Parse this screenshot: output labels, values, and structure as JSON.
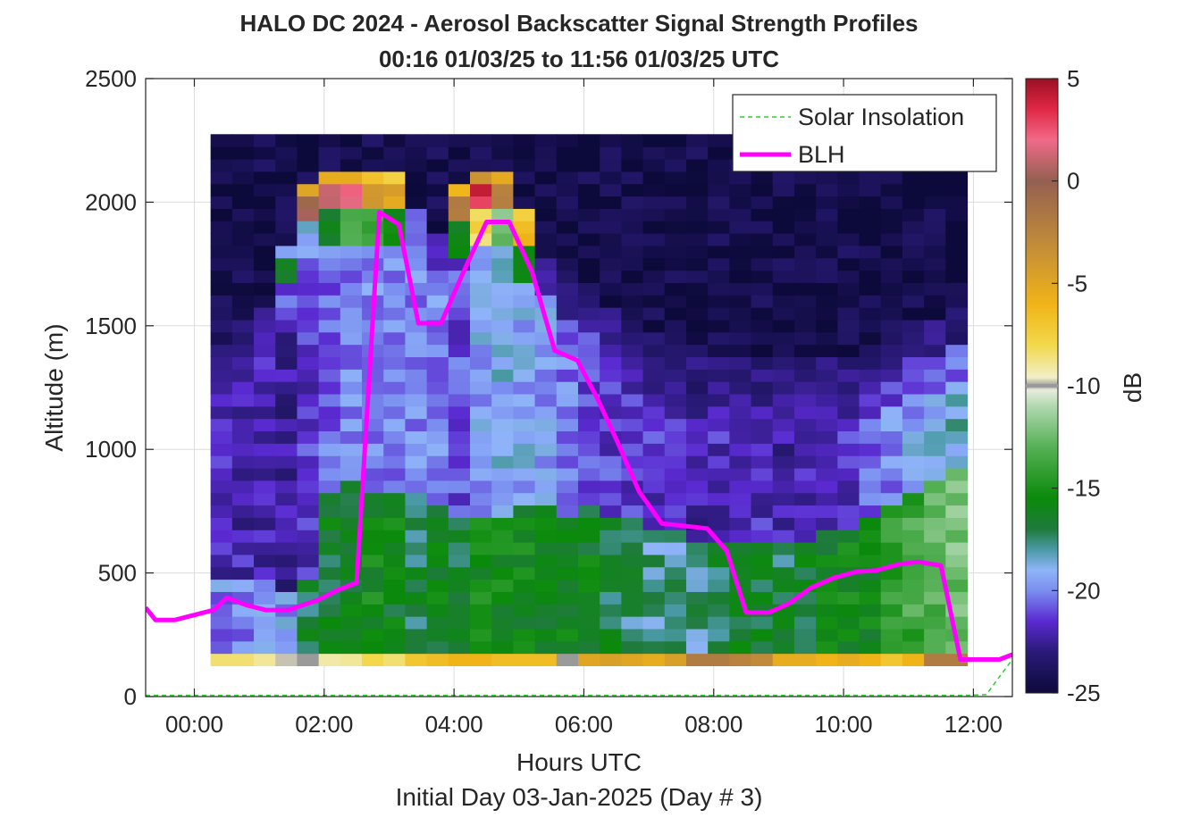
{
  "chart_data": {
    "type": "heatmap",
    "title": "HALO DC 2024 - Aerosol Backscatter Signal Strength Profiles",
    "subtitle": "00:16 01/03/25 to 11:56 01/03/25  UTC",
    "xlabel": "Hours UTC",
    "footer": "Initial Day 03-Jan-2025 (Day # 3)",
    "ylabel": "Altitude (m)",
    "colorbar_label": "dB",
    "x_range_hours": [
      -0.75,
      12.6
    ],
    "y_range_m": [
      0,
      2500
    ],
    "x_ticks": [
      {
        "value": 0,
        "label": "00:00"
      },
      {
        "value": 2,
        "label": "02:00"
      },
      {
        "value": 4,
        "label": "04:00"
      },
      {
        "value": 6,
        "label": "06:00"
      },
      {
        "value": 8,
        "label": "08:00"
      },
      {
        "value": 10,
        "label": "10:00"
      },
      {
        "value": 12,
        "label": "12:00"
      }
    ],
    "y_ticks": [
      {
        "value": 0,
        "label": "0"
      },
      {
        "value": 500,
        "label": "500"
      },
      {
        "value": 1000,
        "label": "1000"
      },
      {
        "value": 1500,
        "label": "1500"
      },
      {
        "value": 2000,
        "label": "2000"
      },
      {
        "value": 2500,
        "label": "2500"
      }
    ],
    "colorbar_range_db": [
      -25,
      5
    ],
    "colorbar_ticks": [
      {
        "value": 5,
        "label": "5"
      },
      {
        "value": 0,
        "label": "0"
      },
      {
        "value": -5,
        "label": "-5"
      },
      {
        "value": -10,
        "label": "-10"
      },
      {
        "value": -15,
        "label": "-15"
      },
      {
        "value": -20,
        "label": "-20"
      },
      {
        "value": -25,
        "label": "-25"
      }
    ],
    "colorbar_stops": [
      {
        "db": -25,
        "color": "#0c0a3a"
      },
      {
        "db": -23,
        "color": "#2a1a78"
      },
      {
        "db": -21.5,
        "color": "#5a2ad0"
      },
      {
        "db": -20,
        "color": "#7a8ef0"
      },
      {
        "db": -19,
        "color": "#8fb4f8"
      },
      {
        "db": -18,
        "color": "#4a9aa6"
      },
      {
        "db": -17,
        "color": "#1f7a3c"
      },
      {
        "db": -15.5,
        "color": "#0a8a0a"
      },
      {
        "db": -13,
        "color": "#55b055"
      },
      {
        "db": -11,
        "color": "#b0d8b0"
      },
      {
        "db": -10.2,
        "color": "#e8ecdc"
      },
      {
        "db": -10,
        "color": "#9a9a9a"
      },
      {
        "db": -9.6,
        "color": "#f2efc8"
      },
      {
        "db": -8,
        "color": "#f2d84a"
      },
      {
        "db": -6,
        "color": "#f0b418"
      },
      {
        "db": -3,
        "color": "#c08a3a"
      },
      {
        "db": 0,
        "color": "#946050"
      },
      {
        "db": 2,
        "color": "#f06a88"
      },
      {
        "db": 3.5,
        "color": "#e02845"
      },
      {
        "db": 5,
        "color": "#9a0f22"
      }
    ],
    "heatmap": {
      "x_start": 0.25,
      "x_step": 0.333,
      "n_cols": 35,
      "y_start": 125,
      "y_step": 50,
      "n_rows": 43,
      "sky_db": -24.5,
      "bottom_row_db": [
        -8.5,
        -8.5,
        -9,
        -9.8,
        -10,
        -9.2,
        -9,
        -8,
        -8.5,
        -7,
        -6.5,
        -6,
        -6,
        -6.5,
        -6.5,
        -6.5,
        -10,
        -5,
        -4.5,
        -5,
        -5.5,
        -4.5,
        -2,
        -2,
        -2.5,
        -3,
        -5.5,
        -5.5,
        -6,
        -5.5,
        -6,
        -7,
        -6,
        -2,
        -2
      ],
      "surface_top_m": [
        430,
        430,
        430,
        400,
        430,
        800,
        840,
        800,
        820,
        800,
        760,
        720,
        700,
        700,
        760,
        740,
        720,
        740,
        720,
        680,
        640,
        640,
        620,
        620,
        620,
        600,
        620,
        620,
        640,
        660,
        680,
        760,
        800,
        860,
        900
      ],
      "surface_db": [
        -20,
        -20,
        -19,
        -19.5,
        -17,
        -16.5,
        -16.5,
        -15.5,
        -16,
        -17,
        -16,
        -17,
        -15.5,
        -15.5,
        -15.8,
        -16.2,
        -16.2,
        -16.2,
        -16.8,
        -17.5,
        -18,
        -17.8,
        -17.8,
        -17,
        -16.5,
        -16.5,
        -17,
        -16.5,
        -16,
        -15.8,
        -15.5,
        -14.5,
        -13.8,
        -12.8,
        -12.5
      ],
      "mid_db": [
        -22,
        -22,
        -22.3,
        -22.5,
        -21.5,
        -20.5,
        -20,
        -20,
        -20,
        -20,
        -20,
        -21,
        -19.5,
        -19,
        -19.3,
        -19.8,
        -20.2,
        -21,
        -21.3,
        -21.3,
        -21.5,
        -21.8,
        -22,
        -21.8,
        -21.8,
        -21.8,
        -22.2,
        -22,
        -22,
        -21.5,
        -20.5,
        -20,
        -19.5,
        -19,
        -18.5
      ],
      "plume_top_m": [
        1400,
        1350,
        1400,
        1650,
        1900,
        1950,
        1950,
        1950,
        1950,
        1800,
        1700,
        1900,
        1950,
        1950,
        1800,
        1600,
        1500,
        1450,
        1400,
        1350,
        1300,
        1250,
        1200,
        1200,
        1200,
        1200,
        1200,
        1200,
        1200,
        1200,
        1250,
        1300,
        1350,
        1350,
        1400
      ],
      "plume_db": [
        -22.5,
        -22.3,
        -22,
        -21,
        -19,
        -16,
        -13.5,
        -14.5,
        -16,
        -20,
        -20,
        -16,
        -8,
        -12,
        -15,
        -19,
        -20.5,
        -21.5,
        -21.8,
        -22,
        -22.5,
        -22.5,
        -22.5,
        -22.5,
        -22.5,
        -22.5,
        -22.5,
        -22.5,
        -22.5,
        -22.2,
        -22,
        -21.5,
        -21,
        -20.5,
        -20.5
      ],
      "layer_db": [
        -24,
        -23,
        -23,
        -19,
        -5,
        -6,
        -6,
        -7,
        -7,
        -20,
        -22,
        -6,
        -3,
        -6,
        -8,
        -22,
        -22.5,
        -23,
        -23,
        -23,
        -23,
        -23,
        -23,
        -23,
        -23,
        -23,
        -23,
        -23,
        -23,
        -23,
        -23,
        -23,
        -23,
        -23,
        -23
      ],
      "peak_db": [
        -24,
        -23,
        -22,
        -17,
        0,
        1.5,
        1.5,
        -4,
        -5,
        -21,
        -22,
        -2,
        3.5,
        -2,
        -6,
        -22,
        -22.5,
        -23,
        -23,
        -23,
        -23,
        -23,
        -23,
        -23,
        -23,
        -23,
        -23,
        -23,
        -23,
        -23,
        -23,
        -23,
        -23,
        -23,
        -23
      ]
    },
    "series": [
      {
        "name": "Solar Insolation",
        "style": "dashed",
        "color": "#33cc33",
        "x": [
          -0.75,
          11.9,
          12.2,
          12.4,
          12.6
        ],
        "y": [
          5,
          5,
          8,
          80,
          150
        ]
      },
      {
        "name": "BLH",
        "style": "solid",
        "color": "#ff00ff",
        "x": [
          -0.75,
          -0.6,
          -0.3,
          0.0,
          0.3,
          0.5,
          0.8,
          1.1,
          1.45,
          1.9,
          2.2,
          2.5,
          2.85,
          3.15,
          3.45,
          3.8,
          4.15,
          4.5,
          4.85,
          5.2,
          5.55,
          5.9,
          6.2,
          6.5,
          6.85,
          7.2,
          7.55,
          7.9,
          8.2,
          8.5,
          8.85,
          9.15,
          9.5,
          9.85,
          10.2,
          10.5,
          10.85,
          11.15,
          11.5,
          11.8,
          12.1,
          12.4,
          12.6
        ],
        "y": [
          360,
          310,
          310,
          330,
          350,
          400,
          370,
          350,
          350,
          390,
          430,
          460,
          1960,
          1910,
          1510,
          1510,
          1720,
          1920,
          1920,
          1720,
          1400,
          1360,
          1210,
          1040,
          830,
          700,
          690,
          680,
          590,
          340,
          340,
          375,
          440,
          480,
          505,
          510,
          535,
          545,
          530,
          150,
          150,
          150,
          170
        ]
      }
    ],
    "legend": {
      "position": "top-right",
      "entries": [
        "Solar Insolation",
        "BLH"
      ]
    },
    "colorbar_marker_db": -10,
    "colors": {
      "blh": "#ff00ff",
      "solar": "#33cc33",
      "plot_background": "#ffffff",
      "axis": "#262626",
      "grid": "#dcdcdc"
    }
  }
}
